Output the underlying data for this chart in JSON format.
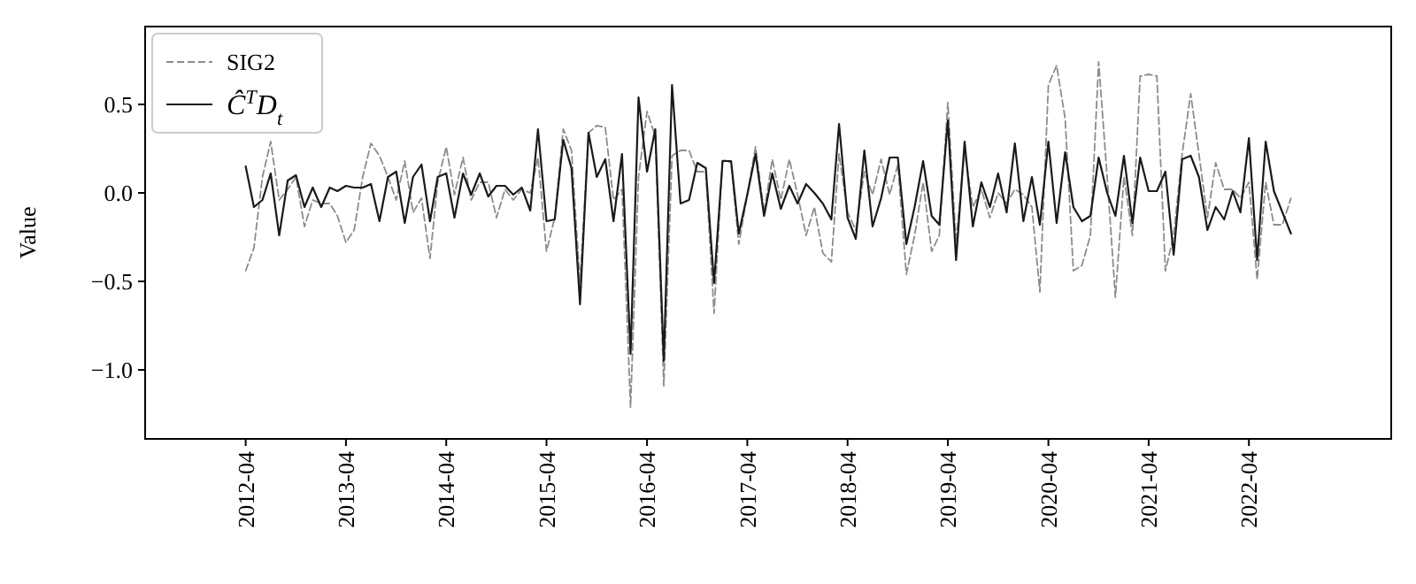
{
  "chart_data": {
    "type": "line",
    "ylabel": "Value",
    "legend": "top left",
    "grid": false,
    "xlim": [
      "2011-04",
      "2023-09"
    ],
    "ylim": [
      -1.39,
      0.94
    ],
    "yticks": [
      {
        "value": -1.0,
        "label": "−1.0"
      },
      {
        "value": -0.5,
        "label": "−0.5"
      },
      {
        "value": 0.0,
        "label": "0.0"
      },
      {
        "value": 0.5,
        "label": "0.5"
      }
    ],
    "xticks": [
      "2012-04",
      "2013-04",
      "2014-04",
      "2015-04",
      "2016-04",
      "2017-04",
      "2018-04",
      "2019-04",
      "2020-04",
      "2021-04",
      "2022-04"
    ],
    "x": [
      "2012-04",
      "2012-05",
      "2012-06",
      "2012-07",
      "2012-08",
      "2012-09",
      "2012-10",
      "2012-11",
      "2012-12",
      "2013-01",
      "2013-02",
      "2013-03",
      "2013-04",
      "2013-05",
      "2013-06",
      "2013-07",
      "2013-08",
      "2013-09",
      "2013-10",
      "2013-11",
      "2013-12",
      "2014-01",
      "2014-02",
      "2014-03",
      "2014-04",
      "2014-05",
      "2014-06",
      "2014-07",
      "2014-08",
      "2014-09",
      "2014-10",
      "2014-11",
      "2014-12",
      "2015-01",
      "2015-02",
      "2015-03",
      "2015-04",
      "2015-05",
      "2015-06",
      "2015-07",
      "2015-08",
      "2015-09",
      "2015-10",
      "2015-11",
      "2015-12",
      "2016-01",
      "2016-02",
      "2016-03",
      "2016-04",
      "2016-05",
      "2016-06",
      "2016-07",
      "2016-08",
      "2016-09",
      "2016-10",
      "2016-11",
      "2016-12",
      "2017-01",
      "2017-02",
      "2017-03",
      "2017-04",
      "2017-05",
      "2017-06",
      "2017-07",
      "2017-08",
      "2017-09",
      "2017-10",
      "2017-11",
      "2017-12",
      "2018-01",
      "2018-02",
      "2018-03",
      "2018-04",
      "2018-05",
      "2018-06",
      "2018-07",
      "2018-08",
      "2018-09",
      "2018-10",
      "2018-11",
      "2018-12",
      "2019-01",
      "2019-02",
      "2019-03",
      "2019-04",
      "2019-05",
      "2019-06",
      "2019-07",
      "2019-08",
      "2019-09",
      "2019-10",
      "2019-11",
      "2019-12",
      "2020-01",
      "2020-02",
      "2020-03",
      "2020-04",
      "2020-05",
      "2020-06",
      "2020-07",
      "2020-08",
      "2020-09",
      "2020-10",
      "2020-11",
      "2020-12",
      "2021-01",
      "2021-02",
      "2021-03",
      "2021-04",
      "2021-05",
      "2021-06",
      "2021-07",
      "2021-08",
      "2021-09",
      "2021-10",
      "2021-11",
      "2021-12",
      "2022-01",
      "2022-02",
      "2022-03",
      "2022-04",
      "2022-05",
      "2022-06",
      "2022-07",
      "2022-08",
      "2022-09"
    ],
    "series": [
      {
        "name": "SIG2",
        "color": "#8c8c8c",
        "line_style": "dashed",
        "values": [
          -0.44,
          -0.31,
          0.09,
          0.29,
          -0.04,
          0.02,
          0.09,
          -0.19,
          -0.04,
          -0.06,
          -0.06,
          -0.13,
          -0.28,
          -0.21,
          0.09,
          0.28,
          0.21,
          0.09,
          -0.04,
          0.18,
          -0.11,
          -0.03,
          -0.37,
          0.06,
          0.26,
          -0.01,
          0.2,
          -0.04,
          0.06,
          0.06,
          -0.14,
          0.02,
          -0.04,
          0.02,
          0.0,
          0.2,
          -0.33,
          -0.14,
          0.36,
          0.24,
          -0.51,
          0.34,
          0.38,
          0.37,
          -0.04,
          0.02,
          -1.21,
          0.09,
          0.46,
          0.32,
          -1.09,
          0.21,
          0.24,
          0.24,
          0.12,
          0.12,
          -0.68,
          0.19,
          0.17,
          -0.29,
          -0.01,
          0.26,
          -0.11,
          0.19,
          -0.04,
          0.19,
          -0.01,
          -0.24,
          -0.08,
          -0.34,
          -0.39,
          0.22,
          -0.11,
          -0.21,
          0.12,
          -0.01,
          0.19,
          -0.01,
          0.16,
          -0.46,
          -0.24,
          0.06,
          -0.33,
          -0.24,
          0.51,
          -0.28,
          0.24,
          -0.08,
          0.02,
          -0.14,
          0.0,
          -0.06,
          0.02,
          -0.01,
          -0.08,
          -0.56,
          0.61,
          0.72,
          0.42,
          -0.44,
          -0.41,
          -0.24,
          0.74,
          0.09,
          -0.59,
          0.09,
          -0.24,
          0.66,
          0.67,
          0.66,
          -0.44,
          -0.24,
          0.22,
          0.56,
          0.22,
          -0.14,
          0.17,
          0.02,
          0.02,
          -0.03,
          0.06,
          -0.49,
          0.06,
          -0.18,
          -0.18,
          -0.03
        ]
      },
      {
        "name": "Ĉ$^{T}$D$_{t}$",
        "color": "#1a1a1a",
        "line_style": "solid",
        "values": [
          0.15,
          -0.08,
          -0.04,
          0.11,
          -0.24,
          0.07,
          0.1,
          -0.08,
          0.03,
          -0.08,
          0.03,
          0.01,
          0.04,
          0.03,
          0.03,
          0.05,
          -0.16,
          0.09,
          0.12,
          -0.17,
          0.09,
          0.16,
          -0.16,
          0.09,
          0.11,
          -0.14,
          0.11,
          -0.01,
          0.11,
          -0.02,
          0.04,
          0.04,
          -0.01,
          0.03,
          -0.1,
          0.36,
          -0.16,
          -0.15,
          0.3,
          0.14,
          -0.63,
          0.34,
          0.09,
          0.19,
          -0.16,
          0.22,
          -0.91,
          0.54,
          0.12,
          0.36,
          -0.95,
          0.61,
          -0.06,
          -0.04,
          0.17,
          0.14,
          -0.51,
          0.18,
          0.18,
          -0.23,
          -0.01,
          0.22,
          -0.13,
          0.11,
          -0.09,
          0.04,
          -0.06,
          0.05,
          0.0,
          -0.06,
          -0.15,
          0.39,
          -0.14,
          -0.26,
          0.24,
          -0.19,
          -0.03,
          0.2,
          0.2,
          -0.29,
          -0.08,
          0.18,
          -0.13,
          -0.18,
          0.41,
          -0.38,
          0.29,
          -0.19,
          0.06,
          -0.08,
          0.11,
          -0.11,
          0.28,
          -0.16,
          0.09,
          -0.18,
          0.29,
          -0.17,
          0.23,
          -0.08,
          -0.16,
          -0.13,
          0.2,
          0.0,
          -0.13,
          0.21,
          -0.17,
          0.2,
          0.01,
          0.01,
          0.12,
          -0.35,
          0.19,
          0.21,
          0.09,
          -0.21,
          -0.08,
          -0.15,
          0.01,
          -0.11,
          0.31,
          -0.38,
          0.29,
          0.01,
          -0.11,
          -0.23
        ]
      }
    ]
  }
}
